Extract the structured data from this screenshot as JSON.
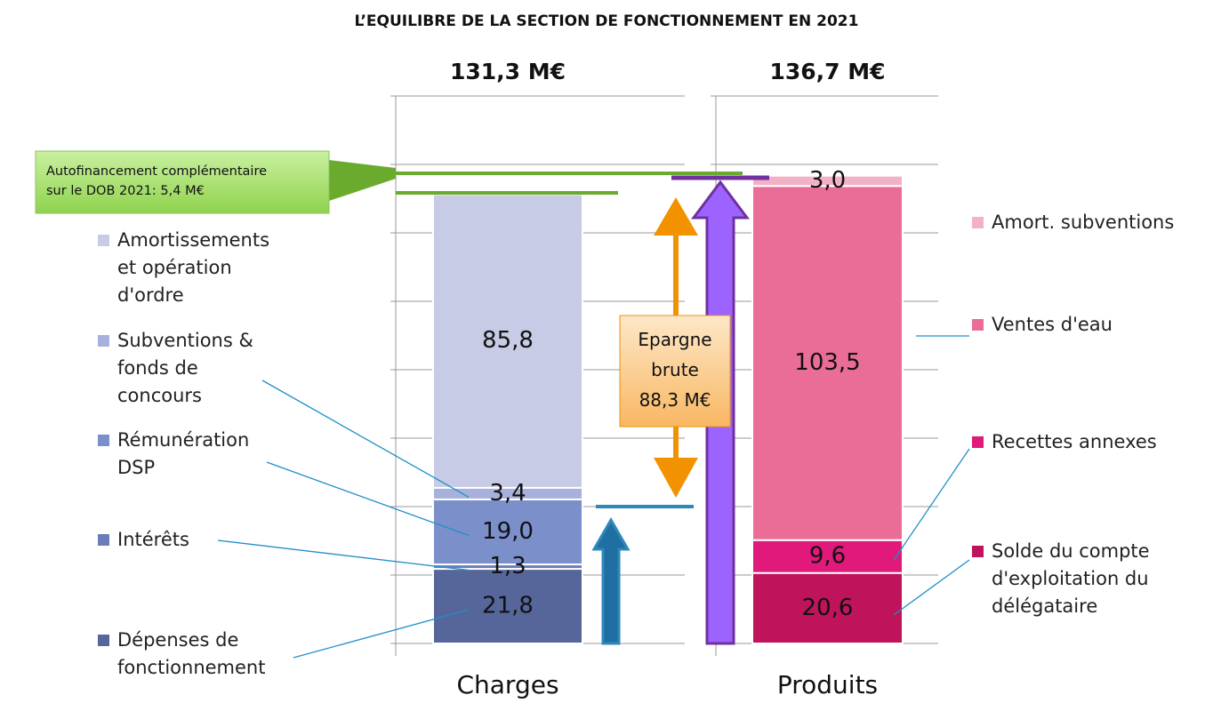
{
  "title": "L’EQUILIBRE DE LA SECTION DE FONCTIONNEMENT EN 2021",
  "annotations": [
    "Autofinancement complémentaire sur le DOB 2021: 5,4 M€",
    "Epargne brute 88,3 M€"
  ],
  "chart_data": [
    {
      "type": "bar",
      "stacked": true,
      "subtitle": "131,3 M€",
      "categories": [
        "Charges"
      ],
      "ylim": [
        0,
        160
      ],
      "yticks": [
        0,
        20,
        40,
        60,
        80,
        100,
        120,
        140,
        160
      ],
      "grid": true,
      "series": [
        {
          "name": "Dépenses de fonctionnement",
          "color": "#56669a",
          "values": [
            21.8
          ],
          "value_labels": [
            "21,8"
          ]
        },
        {
          "name": "Intérêts",
          "color": "#6a7dba",
          "values": [
            1.3
          ],
          "value_labels": [
            "1,3"
          ]
        },
        {
          "name": "Rémunération DSP",
          "color": "#7b8fcb",
          "values": [
            19.0
          ],
          "value_labels": [
            "19,0"
          ]
        },
        {
          "name": "Subventions & fonds de concours",
          "color": "#a7b1db",
          "values": [
            3.4
          ],
          "value_labels": [
            "3,4"
          ]
        },
        {
          "name": "Amortissements et opération d'ordre",
          "color": "#c7cbe5",
          "values": [
            85.8
          ],
          "value_labels": [
            "85,8"
          ]
        }
      ]
    },
    {
      "type": "bar",
      "stacked": true,
      "subtitle": "136,7 M€",
      "categories": [
        "Produits"
      ],
      "ylim": [
        0,
        160
      ],
      "yticks": [
        0,
        20,
        40,
        60,
        80,
        100,
        120,
        140,
        160
      ],
      "grid": true,
      "series": [
        {
          "name": "Solde du compte d'exploitation du délégataire",
          "color": "#bf135b",
          "values": [
            20.6
          ],
          "value_labels": [
            "20,6"
          ]
        },
        {
          "name": "Recettes annexes",
          "color": "#e0197a",
          "values": [
            9.6
          ],
          "value_labels": [
            "9,6"
          ]
        },
        {
          "name": "Ventes d'eau",
          "color": "#ea6d98",
          "values": [
            103.5
          ],
          "value_labels": [
            "103,5"
          ]
        },
        {
          "name": "Amort. subventions",
          "color": "#f3b1c5",
          "values": [
            3.0
          ],
          "value_labels": [
            "3,0"
          ]
        }
      ]
    }
  ]
}
